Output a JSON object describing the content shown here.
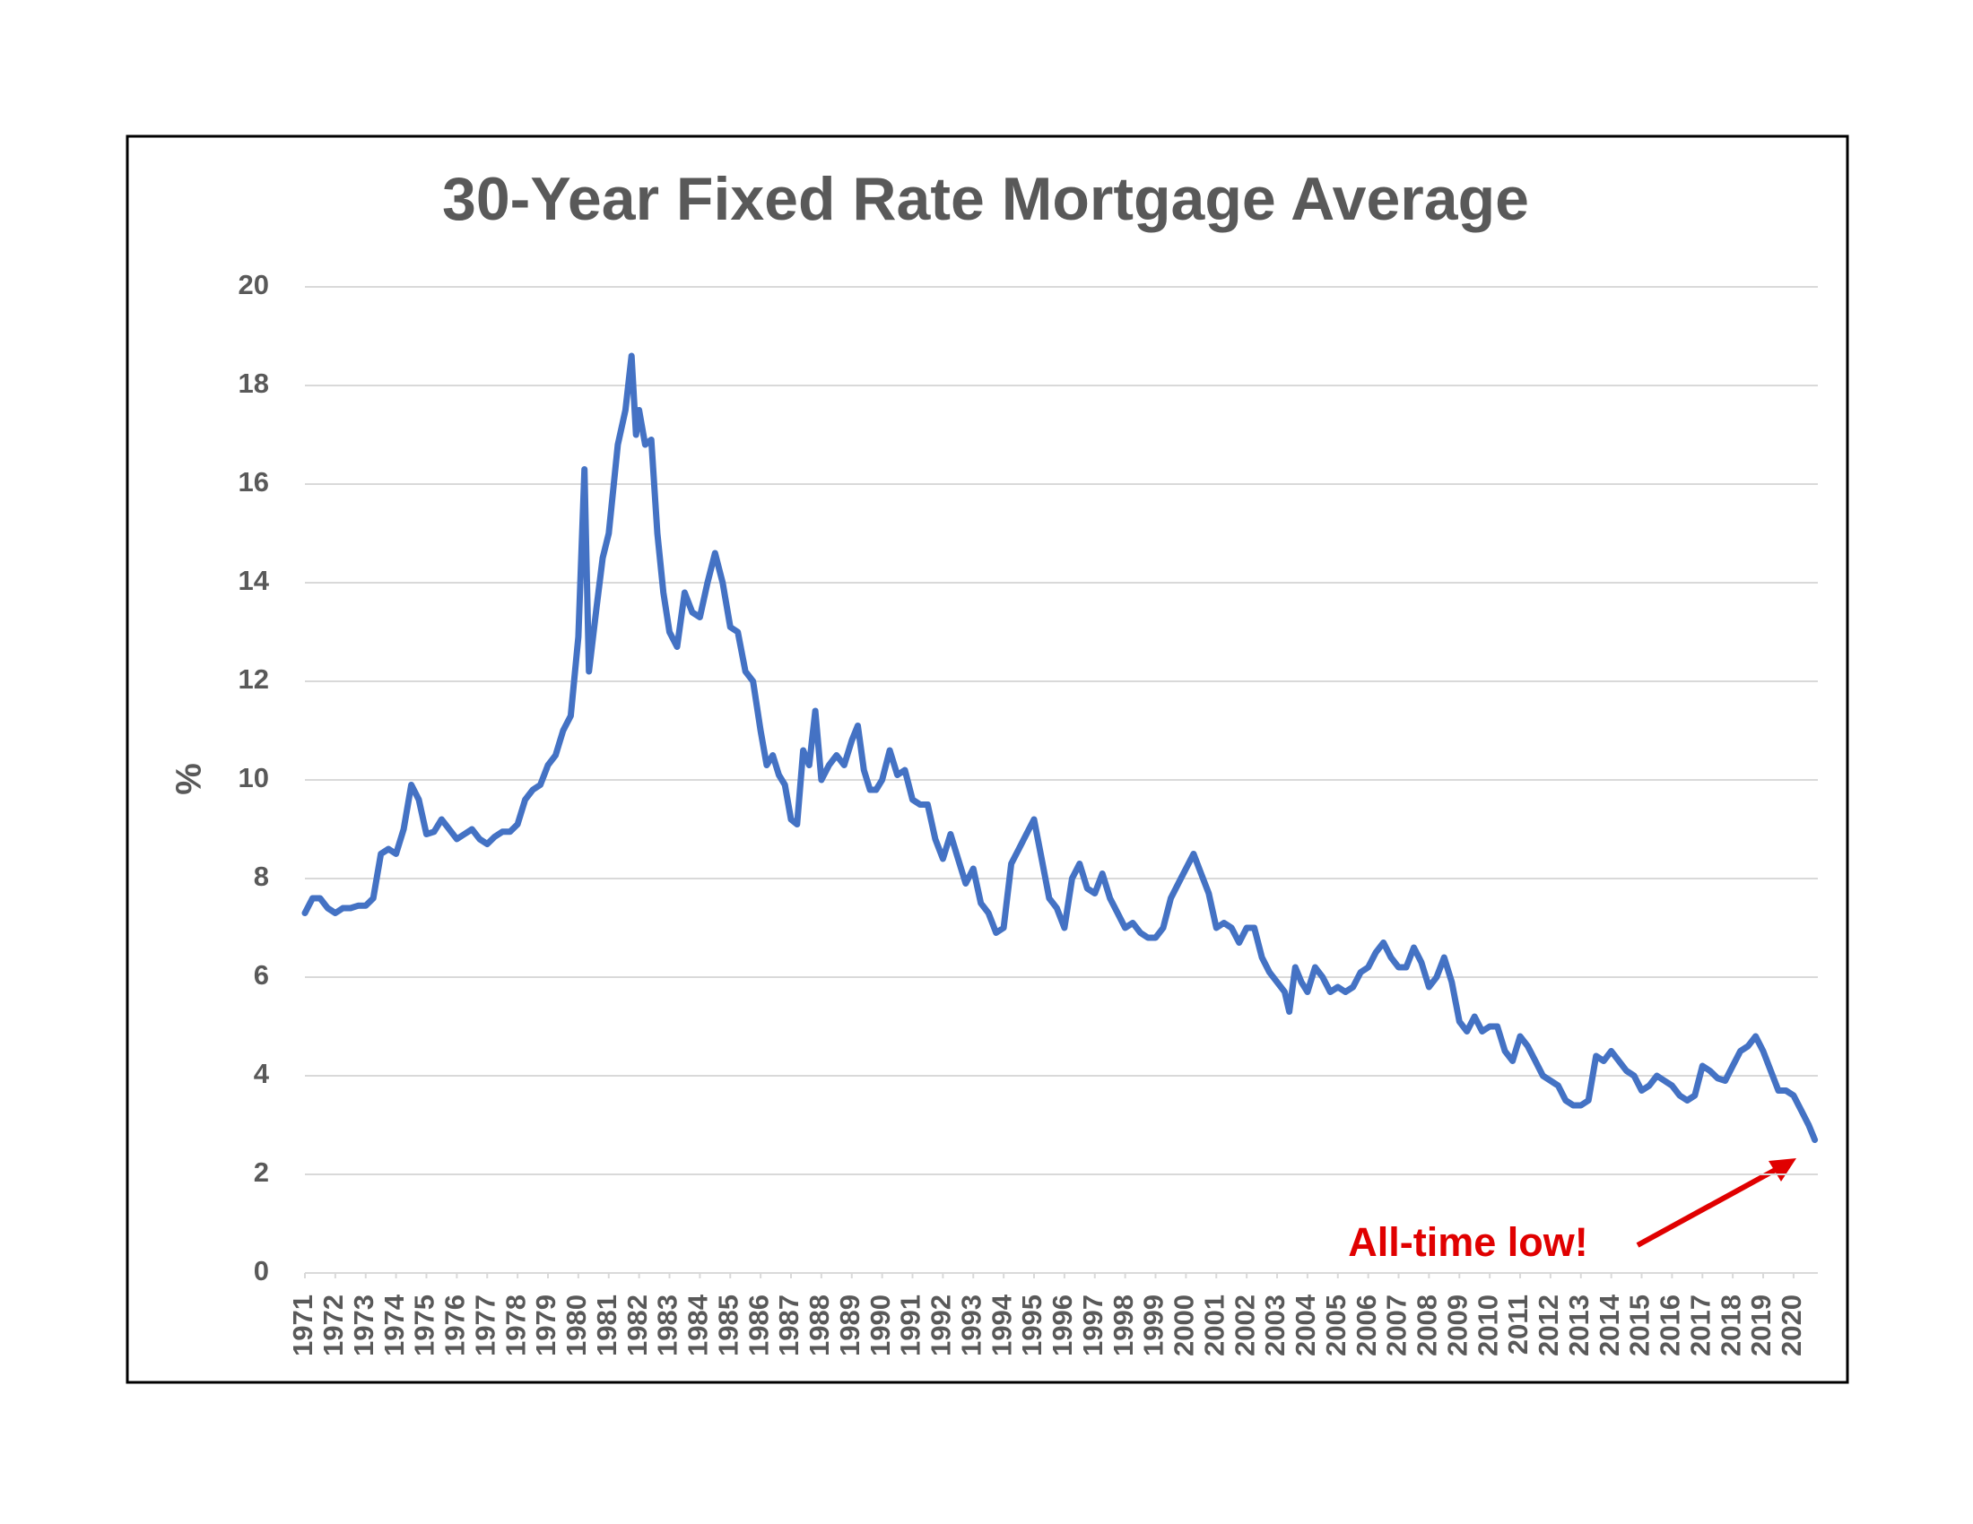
{
  "chart_data": {
    "type": "line",
    "title": "30-Year Fixed Rate Mortgage Average",
    "y_label": "%",
    "annotation": "All-time low!",
    "color": "#4472c4",
    "grid": true,
    "xlim": [
      1971,
      2020.8
    ],
    "ylim": [
      0,
      20
    ],
    "xticks": [
      1971,
      1972,
      1973,
      1974,
      1975,
      1976,
      1977,
      1978,
      1979,
      1980,
      1981,
      1982,
      1983,
      1984,
      1985,
      1986,
      1987,
      1988,
      1989,
      1990,
      1991,
      1992,
      1993,
      1994,
      1995,
      1996,
      1997,
      1998,
      1999,
      2000,
      2001,
      2002,
      2003,
      2004,
      2005,
      2006,
      2007,
      2008,
      2009,
      2010,
      2011,
      2012,
      2013,
      2014,
      2015,
      2016,
      2017,
      2018,
      2019,
      2020
    ],
    "yticks": [
      0,
      2,
      4,
      6,
      8,
      10,
      12,
      14,
      16,
      18,
      20
    ],
    "x": [
      1971,
      1971.25,
      1971.5,
      1971.75,
      1972,
      1972.25,
      1972.5,
      1972.75,
      1973,
      1973.25,
      1973.5,
      1973.75,
      1974,
      1974.25,
      1974.5,
      1974.75,
      1975,
      1975.25,
      1975.5,
      1975.75,
      1976,
      1976.25,
      1976.5,
      1976.75,
      1977,
      1977.25,
      1977.5,
      1977.75,
      1978,
      1978.25,
      1978.5,
      1978.75,
      1979,
      1979.25,
      1979.5,
      1979.75,
      1980,
      1980.2,
      1980.35,
      1980.6,
      1980.8,
      1981,
      1981.3,
      1981.55,
      1981.75,
      1981.9,
      1982,
      1982.2,
      1982.4,
      1982.6,
      1982.8,
      1983,
      1983.25,
      1983.5,
      1983.75,
      1984,
      1984.25,
      1984.5,
      1984.75,
      1985,
      1985.25,
      1985.5,
      1985.75,
      1986,
      1986.2,
      1986.4,
      1986.6,
      1986.8,
      1987,
      1987.2,
      1987.4,
      1987.6,
      1987.8,
      1988,
      1988.25,
      1988.5,
      1988.75,
      1989,
      1989.2,
      1989.4,
      1989.6,
      1989.8,
      1990,
      1990.25,
      1990.5,
      1990.75,
      1991,
      1991.25,
      1991.5,
      1991.75,
      1992,
      1992.25,
      1992.5,
      1992.75,
      1993,
      1993.25,
      1993.5,
      1993.75,
      1994,
      1994.25,
      1994.5,
      1994.75,
      1995,
      1995.25,
      1995.5,
      1995.75,
      1996,
      1996.25,
      1996.5,
      1996.75,
      1997,
      1997.25,
      1997.5,
      1997.75,
      1998,
      1998.25,
      1998.5,
      1998.75,
      1999,
      1999.25,
      1999.5,
      1999.75,
      2000,
      2000.25,
      2000.5,
      2000.75,
      2001,
      2001.25,
      2001.5,
      2001.75,
      2002,
      2002.25,
      2002.5,
      2002.75,
      2003,
      2003.25,
      2003.4,
      2003.6,
      2003.8,
      2004,
      2004.25,
      2004.5,
      2004.75,
      2005,
      2005.25,
      2005.5,
      2005.75,
      2006,
      2006.25,
      2006.5,
      2006.75,
      2007,
      2007.25,
      2007.5,
      2007.75,
      2008,
      2008.25,
      2008.5,
      2008.75,
      2009,
      2009.25,
      2009.5,
      2009.75,
      2010,
      2010.25,
      2010.5,
      2010.75,
      2011,
      2011.25,
      2011.5,
      2011.75,
      2012,
      2012.25,
      2012.5,
      2012.75,
      2013,
      2013.25,
      2013.5,
      2013.75,
      2014,
      2014.25,
      2014.5,
      2014.75,
      2015,
      2015.25,
      2015.5,
      2015.75,
      2016,
      2016.25,
      2016.5,
      2016.75,
      2017,
      2017.25,
      2017.5,
      2017.75,
      2018,
      2018.25,
      2018.5,
      2018.75,
      2019,
      2019.25,
      2019.5,
      2019.75,
      2020,
      2020.25,
      2020.5,
      2020.7
    ],
    "values": [
      7.3,
      7.6,
      7.6,
      7.4,
      7.3,
      7.4,
      7.4,
      7.45,
      7.45,
      7.6,
      8.5,
      8.6,
      8.5,
      9.0,
      9.9,
      9.6,
      8.9,
      8.95,
      9.2,
      9.0,
      8.8,
      8.9,
      9.0,
      8.8,
      8.7,
      8.85,
      8.95,
      8.95,
      9.1,
      9.6,
      9.8,
      9.9,
      10.3,
      10.5,
      11.0,
      11.3,
      12.9,
      16.3,
      12.2,
      13.5,
      14.5,
      15.0,
      16.8,
      17.5,
      18.6,
      17.0,
      17.5,
      16.8,
      16.9,
      15.0,
      13.8,
      13.0,
      12.7,
      13.8,
      13.4,
      13.3,
      14.0,
      14.6,
      14.0,
      13.1,
      13.0,
      12.2,
      12.0,
      11.0,
      10.3,
      10.5,
      10.1,
      9.9,
      9.2,
      9.1,
      10.6,
      10.3,
      11.4,
      10.0,
      10.3,
      10.5,
      10.3,
      10.8,
      11.1,
      10.2,
      9.8,
      9.8,
      10.0,
      10.6,
      10.1,
      10.2,
      9.6,
      9.5,
      9.5,
      8.8,
      8.4,
      8.9,
      8.4,
      7.9,
      8.2,
      7.5,
      7.3,
      6.9,
      7.0,
      8.3,
      8.6,
      8.9,
      9.2,
      8.4,
      7.6,
      7.4,
      7.0,
      8.0,
      8.3,
      7.8,
      7.7,
      8.1,
      7.6,
      7.3,
      7.0,
      7.1,
      6.9,
      6.8,
      6.8,
      7.0,
      7.6,
      7.9,
      8.2,
      8.5,
      8.1,
      7.7,
      7.0,
      7.1,
      7.0,
      6.7,
      7.0,
      7.0,
      6.4,
      6.1,
      5.9,
      5.7,
      5.3,
      6.2,
      5.9,
      5.7,
      6.2,
      6.0,
      5.7,
      5.8,
      5.7,
      5.8,
      6.1,
      6.2,
      6.5,
      6.7,
      6.4,
      6.2,
      6.2,
      6.6,
      6.3,
      5.8,
      6.0,
      6.4,
      5.9,
      5.1,
      4.9,
      5.2,
      4.9,
      5.0,
      5.0,
      4.5,
      4.3,
      4.8,
      4.6,
      4.3,
      4.0,
      3.9,
      3.8,
      3.5,
      3.4,
      3.4,
      3.5,
      4.4,
      4.3,
      4.5,
      4.3,
      4.1,
      4.0,
      3.7,
      3.8,
      4.0,
      3.9,
      3.8,
      3.6,
      3.5,
      3.6,
      4.2,
      4.1,
      3.95,
      3.9,
      4.2,
      4.5,
      4.6,
      4.8,
      4.5,
      4.1,
      3.7,
      3.7,
      3.6,
      3.3,
      3.0,
      2.7
    ]
  }
}
